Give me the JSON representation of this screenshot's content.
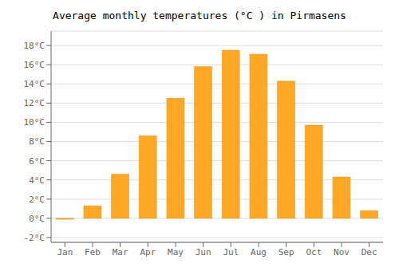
{
  "chart_data": {
    "type": "bar",
    "title": "Average monthly temperatures (°C ) in Pirmasens",
    "categories": [
      "Jan",
      "Feb",
      "Mar",
      "Apr",
      "May",
      "Jun",
      "Jul",
      "Aug",
      "Sep",
      "Oct",
      "Nov",
      "Dec"
    ],
    "values": [
      -0.1,
      1.3,
      4.6,
      8.6,
      12.5,
      15.8,
      17.5,
      17.1,
      14.3,
      9.7,
      4.3,
      0.8
    ],
    "color": "#FFA726",
    "ylim": [
      -2.5,
      19.5
    ],
    "yticks": [
      {
        "value": -2,
        "label": "-2°C"
      },
      {
        "value": 0,
        "label": "0°C"
      },
      {
        "value": 2,
        "label": "2°C"
      },
      {
        "value": 4,
        "label": "4°C"
      },
      {
        "value": 6,
        "label": "6°C"
      },
      {
        "value": 8,
        "label": "8°C"
      },
      {
        "value": 10,
        "label": "10°C"
      },
      {
        "value": 12,
        "label": "12°C"
      },
      {
        "value": 14,
        "label": "14°C"
      },
      {
        "value": 16,
        "label": "16°C"
      },
      {
        "value": 18,
        "label": "18°C"
      }
    ],
    "grid": true
  }
}
